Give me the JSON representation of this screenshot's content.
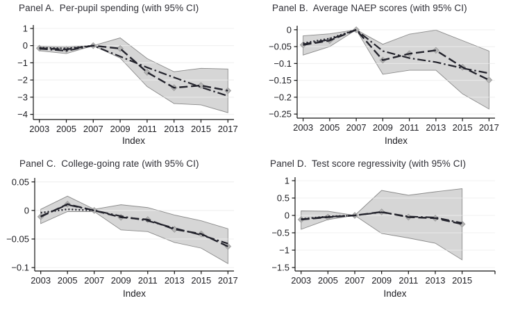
{
  "styles": {
    "band_fill": "#d6d6d6",
    "band_edge": "#8a8a8a",
    "grid_color": "#e3e3e3",
    "grid_over_band": "rgba(255,255,255,0.5)",
    "line_color": "#23232c",
    "marker_fill": "#b5b5b5",
    "marker_edge": "#9a9a9a",
    "axis_color": "#111111",
    "text_color": "#1d1d22"
  },
  "chart_data": [
    {
      "id": "panel-a",
      "type": "line",
      "title": "Panel A.  Per-pupil spending (with 95% CI)",
      "xlabel": "Index",
      "legend": "none",
      "grid": "horizontal",
      "x": [
        2003,
        2005,
        2007,
        2009,
        2011,
        2013,
        2015,
        2017
      ],
      "xlim": [
        2002.55,
        2017.45
      ],
      "ylim": [
        -4.3,
        1.2
      ],
      "yticks": [
        1,
        0,
        -1,
        -2,
        -3,
        -4
      ],
      "ytick_labels": [
        "1",
        "0",
        "−1",
        "−2",
        "−3",
        "−4"
      ],
      "xticks": [
        2003,
        2005,
        2007,
        2009,
        2011,
        2013,
        2015,
        2017
      ],
      "xtick_labels": [
        "2003",
        "2005",
        "2007",
        "2009",
        "2011",
        "2013",
        "2015",
        "2017"
      ],
      "band": {
        "upper": [
          -0.05,
          -0.08,
          0,
          0.45,
          -0.75,
          -1.52,
          -1.32,
          -1.36
        ],
        "lower": [
          -0.3,
          -0.46,
          0,
          -0.72,
          -2.38,
          -3.37,
          -3.45,
          -3.9
        ]
      },
      "series": [
        {
          "name": "alternative-estimator",
          "dash": "dashdot",
          "marker": null,
          "values": [
            -0.18,
            -0.3,
            0,
            -0.63,
            -1.27,
            -1.85,
            -2.42,
            -2.93
          ]
        },
        {
          "name": "point-estimate",
          "dash": "longdash",
          "marker": "diamond",
          "values": [
            -0.15,
            -0.22,
            0,
            -0.17,
            -1.55,
            -2.45,
            -2.32,
            -2.62
          ]
        },
        {
          "name": "pre-trend-fit",
          "dash": "dotted",
          "marker": null,
          "values": [
            -0.12,
            -0.17,
            0,
            null,
            null,
            null,
            null,
            null
          ]
        }
      ]
    },
    {
      "id": "panel-b",
      "type": "line",
      "title": "Panel B.  Average NAEP scores (with 95% CI)",
      "xlabel": "Index",
      "legend": "none",
      "grid": "horizontal",
      "x": [
        2003,
        2005,
        2007,
        2009,
        2011,
        2013,
        2015,
        2017
      ],
      "xlim": [
        2002.55,
        2017.45
      ],
      "ylim": [
        -0.262,
        0.012
      ],
      "yticks": [
        0,
        -0.05,
        -0.1,
        -0.15,
        -0.2,
        -0.25
      ],
      "ytick_labels": [
        "0",
        "−0.05",
        "−0.1",
        "−0.15",
        "−0.2",
        "−0.25"
      ],
      "xticks": [
        2003,
        2005,
        2007,
        2009,
        2011,
        2013,
        2015,
        2017
      ],
      "xtick_labels": [
        "2003",
        "2005",
        "2007",
        "2009",
        "2011",
        "2013",
        "2015",
        "2017"
      ],
      "band": {
        "upper": [
          -0.018,
          -0.012,
          0,
          -0.043,
          -0.013,
          -0.001,
          -0.032,
          -0.063
        ],
        "lower": [
          -0.075,
          -0.05,
          0,
          -0.132,
          -0.12,
          -0.12,
          -0.19,
          -0.235
        ]
      },
      "series": [
        {
          "name": "alternative-estimator",
          "dash": "dashdot",
          "marker": null,
          "values": [
            -0.043,
            -0.029,
            0,
            -0.063,
            -0.084,
            -0.096,
            -0.114,
            -0.129
          ]
        },
        {
          "name": "point-estimate",
          "dash": "longdash",
          "marker": "diamond",
          "values": [
            -0.045,
            -0.032,
            0,
            -0.09,
            -0.071,
            -0.061,
            -0.111,
            -0.149
          ]
        },
        {
          "name": "pre-trend-fit",
          "dash": "dotted",
          "marker": null,
          "values": [
            -0.04,
            -0.026,
            0,
            null,
            null,
            null,
            null,
            null
          ]
        }
      ]
    },
    {
      "id": "panel-c",
      "type": "line",
      "title": "Panel C.  College-going rate (with 95% CI)",
      "xlabel": "Index",
      "legend": "none",
      "grid": "horizontal",
      "x": [
        2003,
        2005,
        2007,
        2009,
        2011,
        2013,
        2015,
        2017
      ],
      "xlim": [
        2002.55,
        2017.45
      ],
      "ylim": [
        -0.106,
        0.057
      ],
      "yticks": [
        0.05,
        0,
        -0.05,
        -0.1
      ],
      "ytick_labels": [
        "0.05",
        "0",
        "−0.05",
        "−0.1"
      ],
      "xticks": [
        2003,
        2005,
        2007,
        2009,
        2011,
        2013,
        2015,
        2017
      ],
      "xtick_labels": [
        "2003",
        "2005",
        "2007",
        "2009",
        "2011",
        "2013",
        "2015",
        "2017"
      ],
      "band": {
        "upper": [
          0.002,
          0.025,
          0.002,
          0.01,
          0.005,
          -0.008,
          -0.018,
          -0.032
        ],
        "lower": [
          -0.023,
          -0.002,
          -0.002,
          -0.034,
          -0.037,
          -0.056,
          -0.066,
          -0.093
        ]
      },
      "series": [
        {
          "name": "alternative-estimator",
          "dash": "dashdot",
          "marker": null,
          "values": [
            -0.01,
            0.01,
            0,
            -0.01,
            -0.018,
            -0.031,
            -0.043,
            -0.058
          ]
        },
        {
          "name": "point-estimate",
          "dash": "longdash",
          "marker": "diamond",
          "values": [
            -0.011,
            0.011,
            0,
            -0.012,
            -0.016,
            -0.033,
            -0.041,
            -0.063
          ]
        },
        {
          "name": "pre-trend-fit",
          "dash": "dotted",
          "marker": null,
          "values": [
            -0.004,
            0.002,
            0,
            null,
            null,
            null,
            null,
            null
          ]
        }
      ]
    },
    {
      "id": "panel-d",
      "type": "line",
      "title": "Panel D.  Test score regressivity (with 95% CI)",
      "xlabel": "Index",
      "legend": "none",
      "grid": "horizontal",
      "x": [
        2003,
        2005,
        2007,
        2009,
        2011,
        2013,
        2015
      ],
      "xlim": [
        2002.55,
        2017.45
      ],
      "ylim": [
        -1.6,
        1.1
      ],
      "yticks": [
        1,
        0.5,
        0,
        -0.5,
        -1,
        -1.5
      ],
      "ytick_labels": [
        "1",
        "0.5",
        "0",
        "−0.5",
        "−1",
        "−1.5"
      ],
      "xticks": [
        2003,
        2005,
        2007,
        2009,
        2011,
        2013,
        2015,
        2017.45
      ],
      "xtick_labels": [
        "2003",
        "2005",
        "2007",
        "2009",
        "2011",
        "2013",
        "2015",
        ""
      ],
      "band": {
        "upper": [
          0.13,
          0.12,
          0,
          0.72,
          0.58,
          0.68,
          0.77
        ],
        "lower": [
          -0.4,
          -0.12,
          0,
          -0.52,
          -0.65,
          -0.8,
          -1.28
        ]
      },
      "series": [
        {
          "name": "alternative-estimator",
          "dash": "dashdot",
          "marker": null,
          "values": [
            -0.11,
            -0.04,
            0,
            0.09,
            -0.03,
            -0.06,
            -0.22
          ]
        },
        {
          "name": "point-estimate",
          "dash": "longdash",
          "marker": "diamond",
          "values": [
            -0.12,
            -0.05,
            0,
            0.1,
            -0.05,
            -0.08,
            -0.25
          ]
        },
        {
          "name": "pre-trend-fit",
          "dash": "dotted",
          "marker": null,
          "values": [
            -0.1,
            -0.03,
            0,
            null,
            null,
            null,
            null
          ]
        }
      ]
    }
  ]
}
